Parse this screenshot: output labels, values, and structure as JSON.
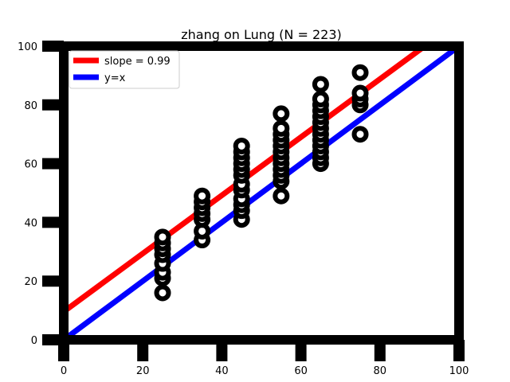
{
  "chart_data": {
    "type": "scatter",
    "title": "zhang on Lung (N = 223)",
    "xlabel": "",
    "ylabel": "",
    "xlim": [
      0,
      100
    ],
    "ylim": [
      0,
      100
    ],
    "xticks": [
      "0",
      "20",
      "40",
      "60",
      "80",
      "100"
    ],
    "yticks": [
      "0",
      "20",
      "40",
      "60",
      "80",
      "100"
    ],
    "grid": false,
    "legend_position": "top-left",
    "points": [
      {
        "x": 25,
        "y": 16
      },
      {
        "x": 25,
        "y": 21
      },
      {
        "x": 25,
        "y": 23
      },
      {
        "x": 25,
        "y": 26
      },
      {
        "x": 25,
        "y": 29
      },
      {
        "x": 25,
        "y": 31
      },
      {
        "x": 25,
        "y": 33
      },
      {
        "x": 25,
        "y": 35
      },
      {
        "x": 35,
        "y": 34
      },
      {
        "x": 35,
        "y": 37
      },
      {
        "x": 35,
        "y": 41
      },
      {
        "x": 35,
        "y": 43
      },
      {
        "x": 35,
        "y": 45
      },
      {
        "x": 35,
        "y": 47
      },
      {
        "x": 35,
        "y": 49
      },
      {
        "x": 45,
        "y": 41
      },
      {
        "x": 45,
        "y": 44
      },
      {
        "x": 45,
        "y": 46
      },
      {
        "x": 45,
        "y": 48
      },
      {
        "x": 45,
        "y": 51
      },
      {
        "x": 45,
        "y": 53
      },
      {
        "x": 45,
        "y": 56
      },
      {
        "x": 45,
        "y": 58
      },
      {
        "x": 45,
        "y": 60
      },
      {
        "x": 45,
        "y": 62
      },
      {
        "x": 45,
        "y": 64
      },
      {
        "x": 45,
        "y": 66
      },
      {
        "x": 55,
        "y": 49
      },
      {
        "x": 55,
        "y": 54
      },
      {
        "x": 55,
        "y": 56
      },
      {
        "x": 55,
        "y": 58
      },
      {
        "x": 55,
        "y": 60
      },
      {
        "x": 55,
        "y": 62
      },
      {
        "x": 55,
        "y": 64
      },
      {
        "x": 55,
        "y": 66
      },
      {
        "x": 55,
        "y": 68
      },
      {
        "x": 55,
        "y": 70
      },
      {
        "x": 55,
        "y": 72
      },
      {
        "x": 55,
        "y": 77
      },
      {
        "x": 65,
        "y": 60
      },
      {
        "x": 65,
        "y": 62
      },
      {
        "x": 65,
        "y": 64
      },
      {
        "x": 65,
        "y": 66
      },
      {
        "x": 65,
        "y": 68
      },
      {
        "x": 65,
        "y": 70
      },
      {
        "x": 65,
        "y": 72
      },
      {
        "x": 65,
        "y": 74
      },
      {
        "x": 65,
        "y": 76
      },
      {
        "x": 65,
        "y": 78
      },
      {
        "x": 65,
        "y": 80
      },
      {
        "x": 65,
        "y": 82
      },
      {
        "x": 65,
        "y": 87
      },
      {
        "x": 75,
        "y": 70
      },
      {
        "x": 75,
        "y": 80
      },
      {
        "x": 75,
        "y": 82
      },
      {
        "x": 75,
        "y": 84
      },
      {
        "x": 75,
        "y": 91
      }
    ],
    "series": [
      {
        "name": "slope = 0.99",
        "color": "#ff0000",
        "type": "line",
        "x": [
          0,
          100
        ],
        "y": [
          9.6,
          108.6
        ]
      },
      {
        "name": "y=x",
        "color": "#0000ff",
        "type": "line",
        "x": [
          0,
          100
        ],
        "y": [
          0,
          100
        ]
      }
    ],
    "marker_color": "#000000"
  }
}
